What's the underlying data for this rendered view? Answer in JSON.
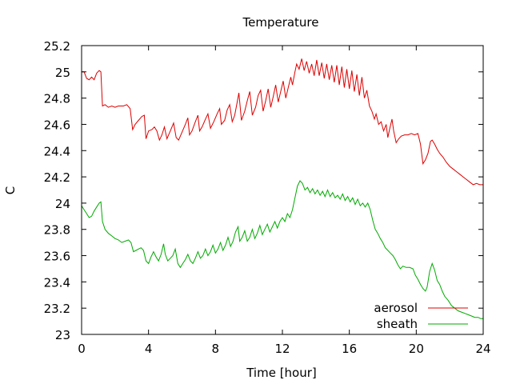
{
  "chart_data": {
    "type": "line",
    "title": "Temperature",
    "xlabel": "Time [hour]",
    "ylabel": "C",
    "xlim": [
      0,
      24
    ],
    "ylim": [
      23,
      25.2
    ],
    "xticks": [
      0,
      4,
      8,
      12,
      16,
      20,
      24
    ],
    "xtick_labels": [
      "0",
      "4",
      "8",
      "12",
      "16",
      "20",
      "24"
    ],
    "yticks": [
      23,
      23.2,
      23.4,
      23.6,
      23.8,
      24,
      24.2,
      24.4,
      24.6,
      24.8,
      25,
      25.2
    ],
    "ytick_labels": [
      "23",
      "23.2",
      "23.4",
      "23.6",
      "23.8",
      "24",
      "24.2",
      "24.4",
      "24.6",
      "24.8",
      "25",
      "25.2"
    ],
    "grid": false,
    "legend": "bottom-right",
    "series": [
      {
        "name": "aerosol",
        "color": "#dd0000",
        "points": [
          [
            0,
            25.0
          ],
          [
            0.15,
            25.0
          ],
          [
            0.3,
            24.95
          ],
          [
            0.45,
            24.94
          ],
          [
            0.6,
            24.96
          ],
          [
            0.75,
            24.94
          ],
          [
            0.9,
            24.99
          ],
          [
            1.05,
            25.01
          ],
          [
            1.15,
            25.0
          ],
          [
            1.25,
            24.74
          ],
          [
            1.4,
            24.75
          ],
          [
            1.6,
            24.73
          ],
          [
            1.8,
            24.74
          ],
          [
            2.0,
            24.73
          ],
          [
            2.2,
            24.74
          ],
          [
            2.5,
            24.74
          ],
          [
            2.7,
            24.75
          ],
          [
            2.9,
            24.72
          ],
          [
            3.05,
            24.56
          ],
          [
            3.2,
            24.6
          ],
          [
            3.4,
            24.63
          ],
          [
            3.6,
            24.66
          ],
          [
            3.75,
            24.67
          ],
          [
            3.85,
            24.49
          ],
          [
            4.0,
            24.55
          ],
          [
            4.2,
            24.56
          ],
          [
            4.35,
            24.58
          ],
          [
            4.5,
            24.55
          ],
          [
            4.65,
            24.48
          ],
          [
            4.8,
            24.52
          ],
          [
            4.95,
            24.58
          ],
          [
            5.1,
            24.49
          ],
          [
            5.3,
            24.55
          ],
          [
            5.5,
            24.61
          ],
          [
            5.65,
            24.5
          ],
          [
            5.8,
            24.48
          ],
          [
            6.0,
            24.54
          ],
          [
            6.2,
            24.6
          ],
          [
            6.35,
            24.65
          ],
          [
            6.45,
            24.52
          ],
          [
            6.6,
            24.55
          ],
          [
            6.8,
            24.62
          ],
          [
            6.95,
            24.67
          ],
          [
            7.05,
            24.55
          ],
          [
            7.2,
            24.58
          ],
          [
            7.4,
            24.64
          ],
          [
            7.55,
            24.68
          ],
          [
            7.7,
            24.57
          ],
          [
            7.9,
            24.62
          ],
          [
            8.1,
            24.68
          ],
          [
            8.25,
            24.72
          ],
          [
            8.35,
            24.6
          ],
          [
            8.55,
            24.63
          ],
          [
            8.7,
            24.71
          ],
          [
            8.85,
            24.75
          ],
          [
            9.0,
            24.62
          ],
          [
            9.15,
            24.67
          ],
          [
            9.3,
            24.77
          ],
          [
            9.4,
            24.84
          ],
          [
            9.55,
            24.63
          ],
          [
            9.75,
            24.7
          ],
          [
            9.9,
            24.78
          ],
          [
            10.05,
            24.85
          ],
          [
            10.2,
            24.67
          ],
          [
            10.4,
            24.73
          ],
          [
            10.55,
            24.82
          ],
          [
            10.7,
            24.86
          ],
          [
            10.85,
            24.7
          ],
          [
            11.0,
            24.78
          ],
          [
            11.15,
            24.87
          ],
          [
            11.3,
            24.73
          ],
          [
            11.45,
            24.81
          ],
          [
            11.6,
            24.9
          ],
          [
            11.75,
            24.77
          ],
          [
            11.9,
            24.85
          ],
          [
            12.05,
            24.93
          ],
          [
            12.2,
            24.8
          ],
          [
            12.35,
            24.88
          ],
          [
            12.5,
            24.96
          ],
          [
            12.6,
            24.9
          ],
          [
            12.75,
            25.0
          ],
          [
            12.85,
            25.06
          ],
          [
            13.0,
            25.02
          ],
          [
            13.15,
            25.1
          ],
          [
            13.3,
            25.01
          ],
          [
            13.45,
            25.08
          ],
          [
            13.6,
            24.99
          ],
          [
            13.75,
            25.06
          ],
          [
            13.9,
            24.97
          ],
          [
            14.05,
            25.09
          ],
          [
            14.2,
            24.97
          ],
          [
            14.35,
            25.07
          ],
          [
            14.5,
            24.95
          ],
          [
            14.65,
            25.06
          ],
          [
            14.8,
            24.94
          ],
          [
            14.95,
            25.05
          ],
          [
            15.1,
            24.92
          ],
          [
            15.25,
            25.05
          ],
          [
            15.4,
            24.9
          ],
          [
            15.55,
            25.04
          ],
          [
            15.7,
            24.88
          ],
          [
            15.85,
            25.02
          ],
          [
            16.0,
            24.87
          ],
          [
            16.15,
            25.01
          ],
          [
            16.3,
            24.85
          ],
          [
            16.45,
            24.98
          ],
          [
            16.6,
            24.82
          ],
          [
            16.75,
            24.96
          ],
          [
            16.9,
            24.8
          ],
          [
            17.05,
            24.86
          ],
          [
            17.2,
            24.74
          ],
          [
            17.35,
            24.7
          ],
          [
            17.5,
            24.64
          ],
          [
            17.6,
            24.68
          ],
          [
            17.75,
            24.6
          ],
          [
            17.9,
            24.62
          ],
          [
            18.05,
            24.55
          ],
          [
            18.2,
            24.6
          ],
          [
            18.3,
            24.5
          ],
          [
            18.4,
            24.56
          ],
          [
            18.55,
            24.64
          ],
          [
            18.65,
            24.55
          ],
          [
            18.8,
            24.46
          ],
          [
            18.95,
            24.49
          ],
          [
            19.1,
            24.51
          ],
          [
            19.3,
            24.52
          ],
          [
            19.5,
            24.52
          ],
          [
            19.7,
            24.53
          ],
          [
            19.9,
            24.52
          ],
          [
            20.1,
            24.53
          ],
          [
            20.25,
            24.45
          ],
          [
            20.4,
            24.3
          ],
          [
            20.55,
            24.33
          ],
          [
            20.7,
            24.38
          ],
          [
            20.85,
            24.47
          ],
          [
            20.95,
            24.48
          ],
          [
            21.1,
            24.45
          ],
          [
            21.25,
            24.41
          ],
          [
            21.4,
            24.38
          ],
          [
            21.6,
            24.35
          ],
          [
            21.8,
            24.31
          ],
          [
            22.0,
            24.28
          ],
          [
            22.2,
            24.26
          ],
          [
            22.4,
            24.24
          ],
          [
            22.6,
            24.22
          ],
          [
            22.8,
            24.2
          ],
          [
            23.0,
            24.18
          ],
          [
            23.2,
            24.16
          ],
          [
            23.4,
            24.14
          ],
          [
            23.6,
            24.15
          ],
          [
            23.8,
            24.14
          ],
          [
            24.0,
            24.14
          ]
        ]
      },
      {
        "name": "sheath",
        "color": "#00aa00",
        "points": [
          [
            0,
            23.98
          ],
          [
            0.15,
            23.95
          ],
          [
            0.3,
            23.92
          ],
          [
            0.45,
            23.89
          ],
          [
            0.6,
            23.9
          ],
          [
            0.75,
            23.94
          ],
          [
            0.9,
            23.97
          ],
          [
            1.05,
            24.0
          ],
          [
            1.15,
            24.01
          ],
          [
            1.25,
            23.86
          ],
          [
            1.4,
            23.8
          ],
          [
            1.6,
            23.77
          ],
          [
            1.8,
            23.75
          ],
          [
            2.0,
            23.73
          ],
          [
            2.2,
            23.72
          ],
          [
            2.4,
            23.7
          ],
          [
            2.6,
            23.71
          ],
          [
            2.8,
            23.72
          ],
          [
            2.95,
            23.7
          ],
          [
            3.1,
            23.63
          ],
          [
            3.25,
            23.64
          ],
          [
            3.4,
            23.65
          ],
          [
            3.55,
            23.66
          ],
          [
            3.7,
            23.64
          ],
          [
            3.85,
            23.56
          ],
          [
            4.0,
            23.54
          ],
          [
            4.15,
            23.59
          ],
          [
            4.3,
            23.63
          ],
          [
            4.45,
            23.59
          ],
          [
            4.6,
            23.56
          ],
          [
            4.75,
            23.61
          ],
          [
            4.9,
            23.69
          ],
          [
            5.0,
            23.61
          ],
          [
            5.15,
            23.56
          ],
          [
            5.3,
            23.58
          ],
          [
            5.45,
            23.6
          ],
          [
            5.6,
            23.65
          ],
          [
            5.75,
            23.54
          ],
          [
            5.9,
            23.51
          ],
          [
            6.05,
            23.54
          ],
          [
            6.2,
            23.57
          ],
          [
            6.35,
            23.61
          ],
          [
            6.5,
            23.56
          ],
          [
            6.65,
            23.54
          ],
          [
            6.8,
            23.58
          ],
          [
            6.95,
            23.63
          ],
          [
            7.1,
            23.58
          ],
          [
            7.25,
            23.6
          ],
          [
            7.4,
            23.65
          ],
          [
            7.55,
            23.6
          ],
          [
            7.7,
            23.63
          ],
          [
            7.85,
            23.68
          ],
          [
            8.0,
            23.62
          ],
          [
            8.15,
            23.65
          ],
          [
            8.3,
            23.7
          ],
          [
            8.45,
            23.64
          ],
          [
            8.6,
            23.68
          ],
          [
            8.75,
            23.74
          ],
          [
            8.9,
            23.67
          ],
          [
            9.05,
            23.71
          ],
          [
            9.2,
            23.78
          ],
          [
            9.35,
            23.82
          ],
          [
            9.45,
            23.71
          ],
          [
            9.6,
            23.74
          ],
          [
            9.75,
            23.79
          ],
          [
            9.9,
            23.71
          ],
          [
            10.05,
            23.74
          ],
          [
            10.2,
            23.8
          ],
          [
            10.35,
            23.73
          ],
          [
            10.5,
            23.77
          ],
          [
            10.65,
            23.83
          ],
          [
            10.8,
            23.76
          ],
          [
            10.95,
            23.8
          ],
          [
            11.1,
            23.84
          ],
          [
            11.25,
            23.78
          ],
          [
            11.4,
            23.82
          ],
          [
            11.55,
            23.86
          ],
          [
            11.7,
            23.81
          ],
          [
            11.85,
            23.86
          ],
          [
            12.0,
            23.89
          ],
          [
            12.15,
            23.86
          ],
          [
            12.3,
            23.92
          ],
          [
            12.45,
            23.89
          ],
          [
            12.6,
            23.95
          ],
          [
            12.75,
            24.04
          ],
          [
            12.9,
            24.13
          ],
          [
            13.05,
            24.17
          ],
          [
            13.2,
            24.15
          ],
          [
            13.35,
            24.1
          ],
          [
            13.5,
            24.12
          ],
          [
            13.65,
            24.08
          ],
          [
            13.8,
            24.11
          ],
          [
            13.95,
            24.07
          ],
          [
            14.1,
            24.1
          ],
          [
            14.25,
            24.06
          ],
          [
            14.4,
            24.09
          ],
          [
            14.55,
            24.05
          ],
          [
            14.7,
            24.1
          ],
          [
            14.85,
            24.05
          ],
          [
            15.0,
            24.08
          ],
          [
            15.15,
            24.04
          ],
          [
            15.3,
            24.06
          ],
          [
            15.45,
            24.03
          ],
          [
            15.6,
            24.07
          ],
          [
            15.75,
            24.02
          ],
          [
            15.9,
            24.05
          ],
          [
            16.05,
            24.01
          ],
          [
            16.2,
            24.04
          ],
          [
            16.35,
            23.99
          ],
          [
            16.5,
            24.03
          ],
          [
            16.65,
            23.98
          ],
          [
            16.8,
            24.0
          ],
          [
            16.95,
            23.97
          ],
          [
            17.1,
            24.0
          ],
          [
            17.25,
            23.95
          ],
          [
            17.4,
            23.87
          ],
          [
            17.55,
            23.8
          ],
          [
            17.7,
            23.77
          ],
          [
            17.85,
            23.73
          ],
          [
            18.0,
            23.7
          ],
          [
            18.15,
            23.66
          ],
          [
            18.3,
            23.64
          ],
          [
            18.45,
            23.62
          ],
          [
            18.6,
            23.6
          ],
          [
            18.75,
            23.57
          ],
          [
            18.9,
            23.53
          ],
          [
            19.05,
            23.5
          ],
          [
            19.2,
            23.52
          ],
          [
            19.4,
            23.51
          ],
          [
            19.6,
            23.51
          ],
          [
            19.8,
            23.5
          ],
          [
            19.95,
            23.45
          ],
          [
            20.1,
            23.42
          ],
          [
            20.25,
            23.38
          ],
          [
            20.4,
            23.35
          ],
          [
            20.55,
            23.33
          ],
          [
            20.65,
            23.36
          ],
          [
            20.8,
            23.48
          ],
          [
            20.95,
            23.54
          ],
          [
            21.1,
            23.49
          ],
          [
            21.25,
            23.41
          ],
          [
            21.4,
            23.38
          ],
          [
            21.55,
            23.33
          ],
          [
            21.7,
            23.29
          ],
          [
            21.9,
            23.26
          ],
          [
            22.1,
            23.22
          ],
          [
            22.3,
            23.2
          ],
          [
            22.5,
            23.18
          ],
          [
            22.7,
            23.17
          ],
          [
            22.9,
            23.16
          ],
          [
            23.1,
            23.15
          ],
          [
            23.3,
            23.14
          ],
          [
            23.5,
            23.13
          ],
          [
            23.7,
            23.13
          ],
          [
            23.85,
            23.12
          ],
          [
            24.0,
            23.12
          ]
        ]
      }
    ]
  }
}
